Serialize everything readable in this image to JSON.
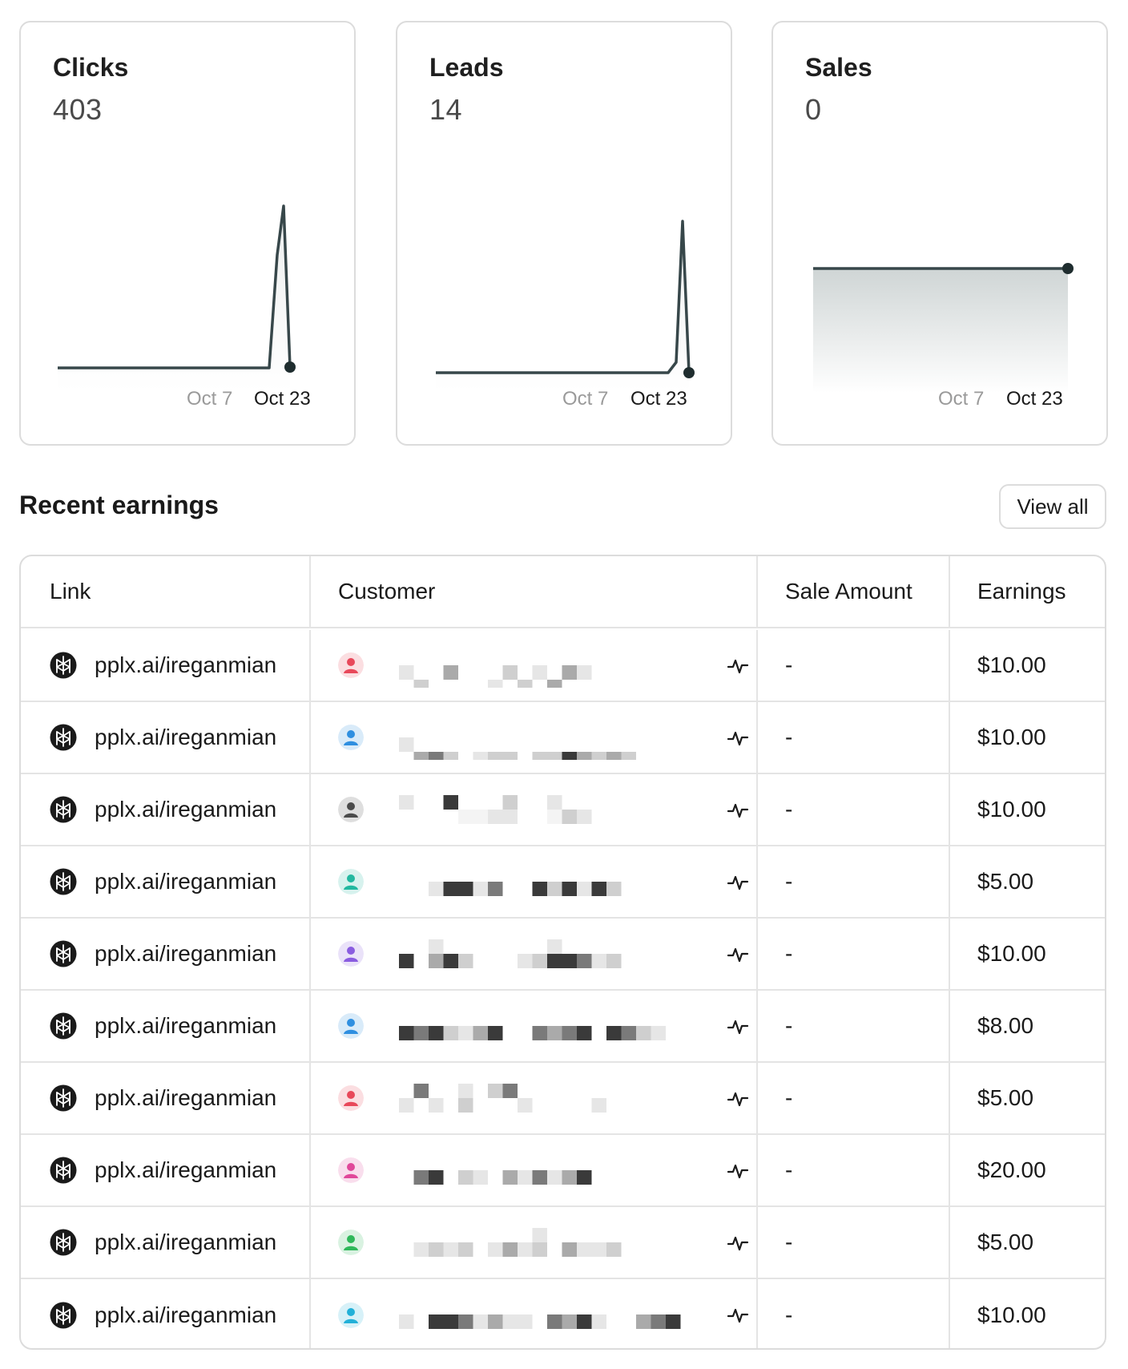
{
  "cards": [
    {
      "title": "Clicks",
      "value": "403",
      "axis_start": "Oct 7",
      "axis_end": "Oct 23"
    },
    {
      "title": "Leads",
      "value": "14",
      "axis_start": "Oct 7",
      "axis_end": "Oct 23"
    },
    {
      "title": "Sales",
      "value": "0",
      "axis_start": "Oct 7",
      "axis_end": "Oct 23"
    }
  ],
  "earnings": {
    "title": "Recent earnings",
    "view_all_label": "View all",
    "columns": [
      "Link",
      "Customer",
      "Sale Amount",
      "Earnings"
    ],
    "rows": [
      {
        "link": "pplx.ai/ireganmian",
        "avatar_color": "#e8485a",
        "sale_amount": "-",
        "earnings": "$10.00"
      },
      {
        "link": "pplx.ai/ireganmian",
        "avatar_color": "#2f8fe0",
        "sale_amount": "-",
        "earnings": "$10.00"
      },
      {
        "link": "pplx.ai/ireganmian",
        "avatar_color": "#4a4a4a",
        "sale_amount": "-",
        "earnings": "$10.00"
      },
      {
        "link": "pplx.ai/ireganmian",
        "avatar_color": "#22b8a0",
        "sale_amount": "-",
        "earnings": "$5.00"
      },
      {
        "link": "pplx.ai/ireganmian",
        "avatar_color": "#8a5ce0",
        "sale_amount": "-",
        "earnings": "$10.00"
      },
      {
        "link": "pplx.ai/ireganmian",
        "avatar_color": "#2f8fe0",
        "sale_amount": "-",
        "earnings": "$8.00"
      },
      {
        "link": "pplx.ai/ireganmian",
        "avatar_color": "#e8485a",
        "sale_amount": "-",
        "earnings": "$5.00"
      },
      {
        "link": "pplx.ai/ireganmian",
        "avatar_color": "#e0489a",
        "sale_amount": "-",
        "earnings": "$20.00"
      },
      {
        "link": "pplx.ai/ireganmian",
        "avatar_color": "#2fb85a",
        "sale_amount": "-",
        "earnings": "$5.00"
      },
      {
        "link": "pplx.ai/ireganmian",
        "avatar_color": "#22b0d8",
        "sale_amount": "-",
        "earnings": "$10.00"
      }
    ]
  },
  "icons": {
    "link_logo": "perplexity-logo-icon",
    "customer_avatar": "user-avatar-icon",
    "activity": "activity-icon"
  },
  "colors": {
    "line": "#37474a",
    "border": "#dcdcdc",
    "muted_text": "#9a9a9a"
  }
}
